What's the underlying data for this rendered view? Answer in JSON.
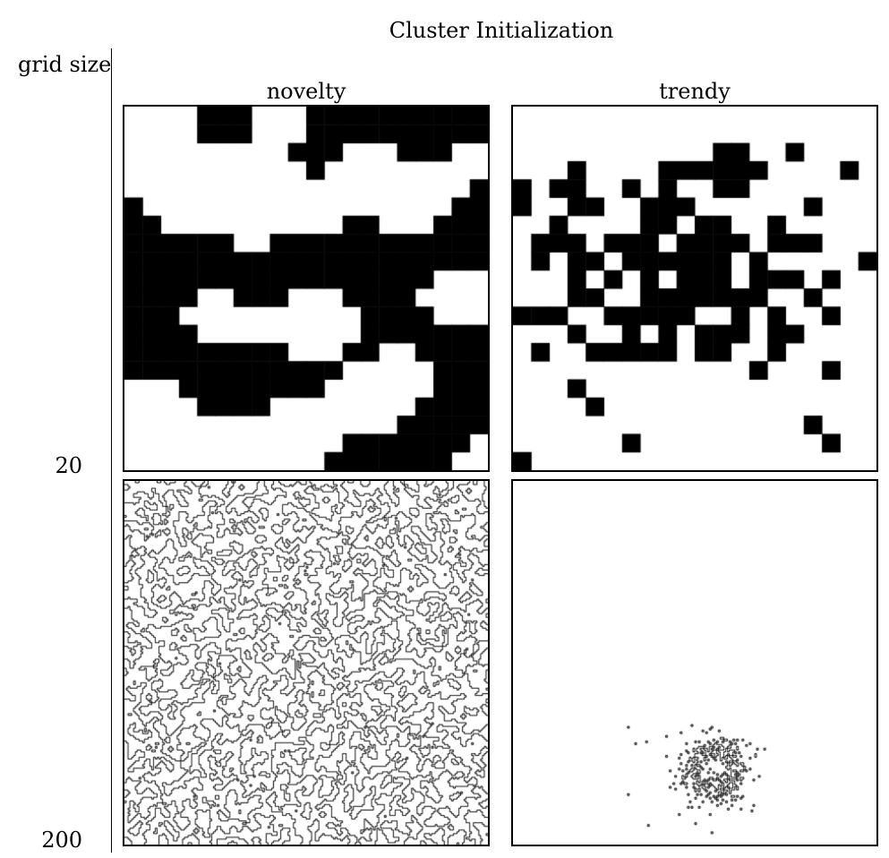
{
  "title": "Cluster Initialization",
  "row_axis_title": "grid size",
  "columns": [
    "novelty",
    "trendy"
  ],
  "rows": [
    "20",
    "200"
  ],
  "panels": [
    {
      "column": "novelty",
      "grid_size": 20,
      "pattern": "percolating-clusters"
    },
    {
      "column": "trendy",
      "grid_size": 20,
      "pattern": "single-central-cluster"
    },
    {
      "column": "novelty",
      "grid_size": 200,
      "pattern": "percolating-clusters"
    },
    {
      "column": "trendy",
      "grid_size": 200,
      "pattern": "single-central-cluster"
    }
  ],
  "colors": {
    "occupied": "#000000",
    "empty": "#ffffff"
  }
}
